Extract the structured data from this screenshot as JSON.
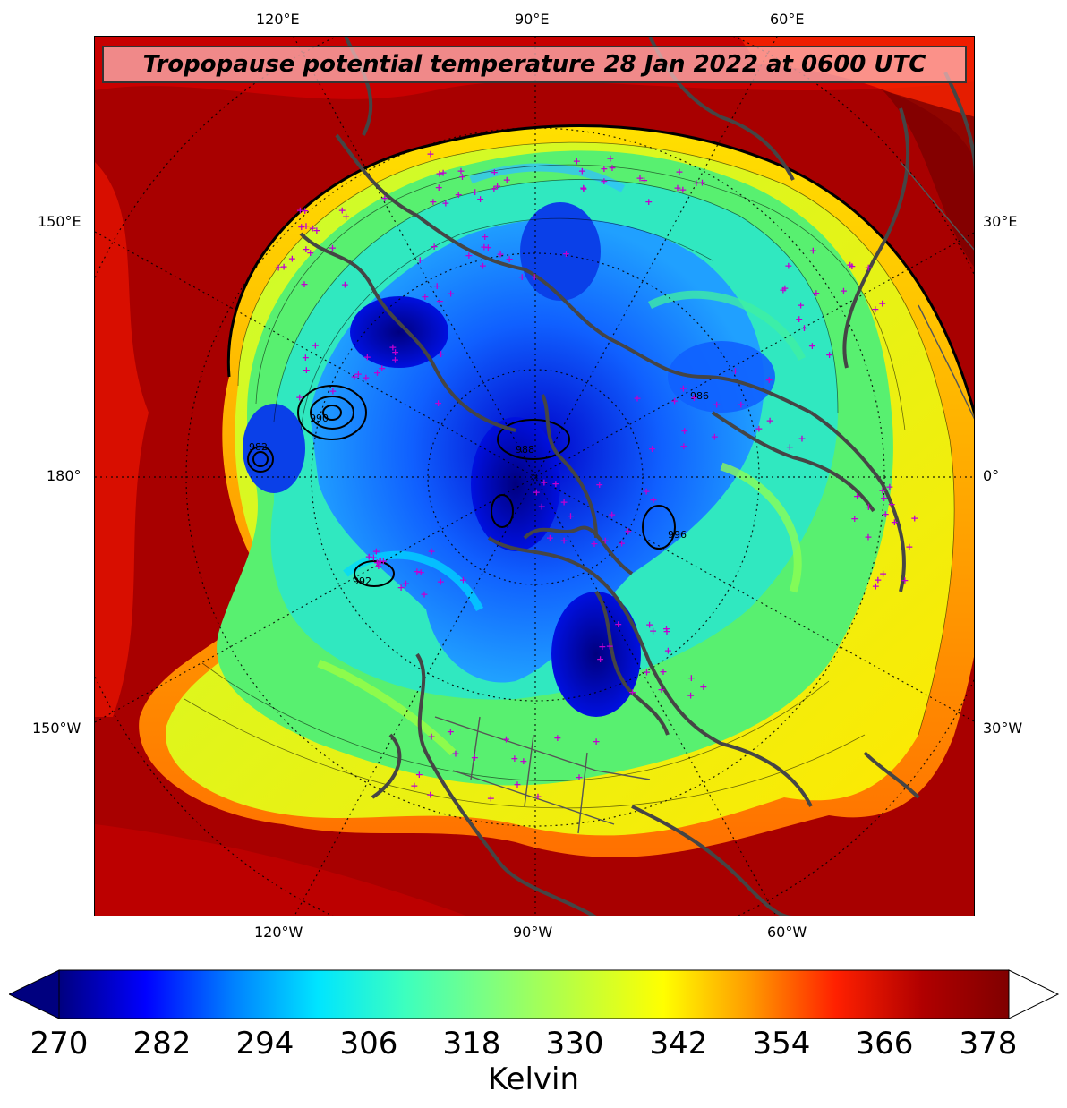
{
  "title": "Tropopause potential temperature 28 Jan 2022 at 0600 UTC",
  "top_labels": [
    "120°E",
    "90°E",
    "60°E"
  ],
  "bottom_labels": [
    "120°W",
    "90°W",
    "60°W"
  ],
  "left_labels": [
    "150°E",
    "180°",
    "150°W"
  ],
  "right_labels": [
    "30°E",
    "0°",
    "30°W"
  ],
  "colorbar": {
    "ticks": [
      "270",
      "282",
      "294",
      "306",
      "318",
      "330",
      "342",
      "354",
      "366",
      "378"
    ],
    "unit": "Kelvin",
    "min": 270,
    "max": 381,
    "colors": [
      "#00007f",
      "#0000ff",
      "#007fff",
      "#00e5ff",
      "#3cffbf",
      "#7fff7f",
      "#bfff3c",
      "#ffff00",
      "#ff9a00",
      "#ff2000",
      "#b00000",
      "#800000"
    ]
  },
  "map": {
    "background_color": "#a80000",
    "pressure_contour_labels": [
      "990",
      "982",
      "986",
      "992",
      "988",
      "996"
    ]
  }
}
